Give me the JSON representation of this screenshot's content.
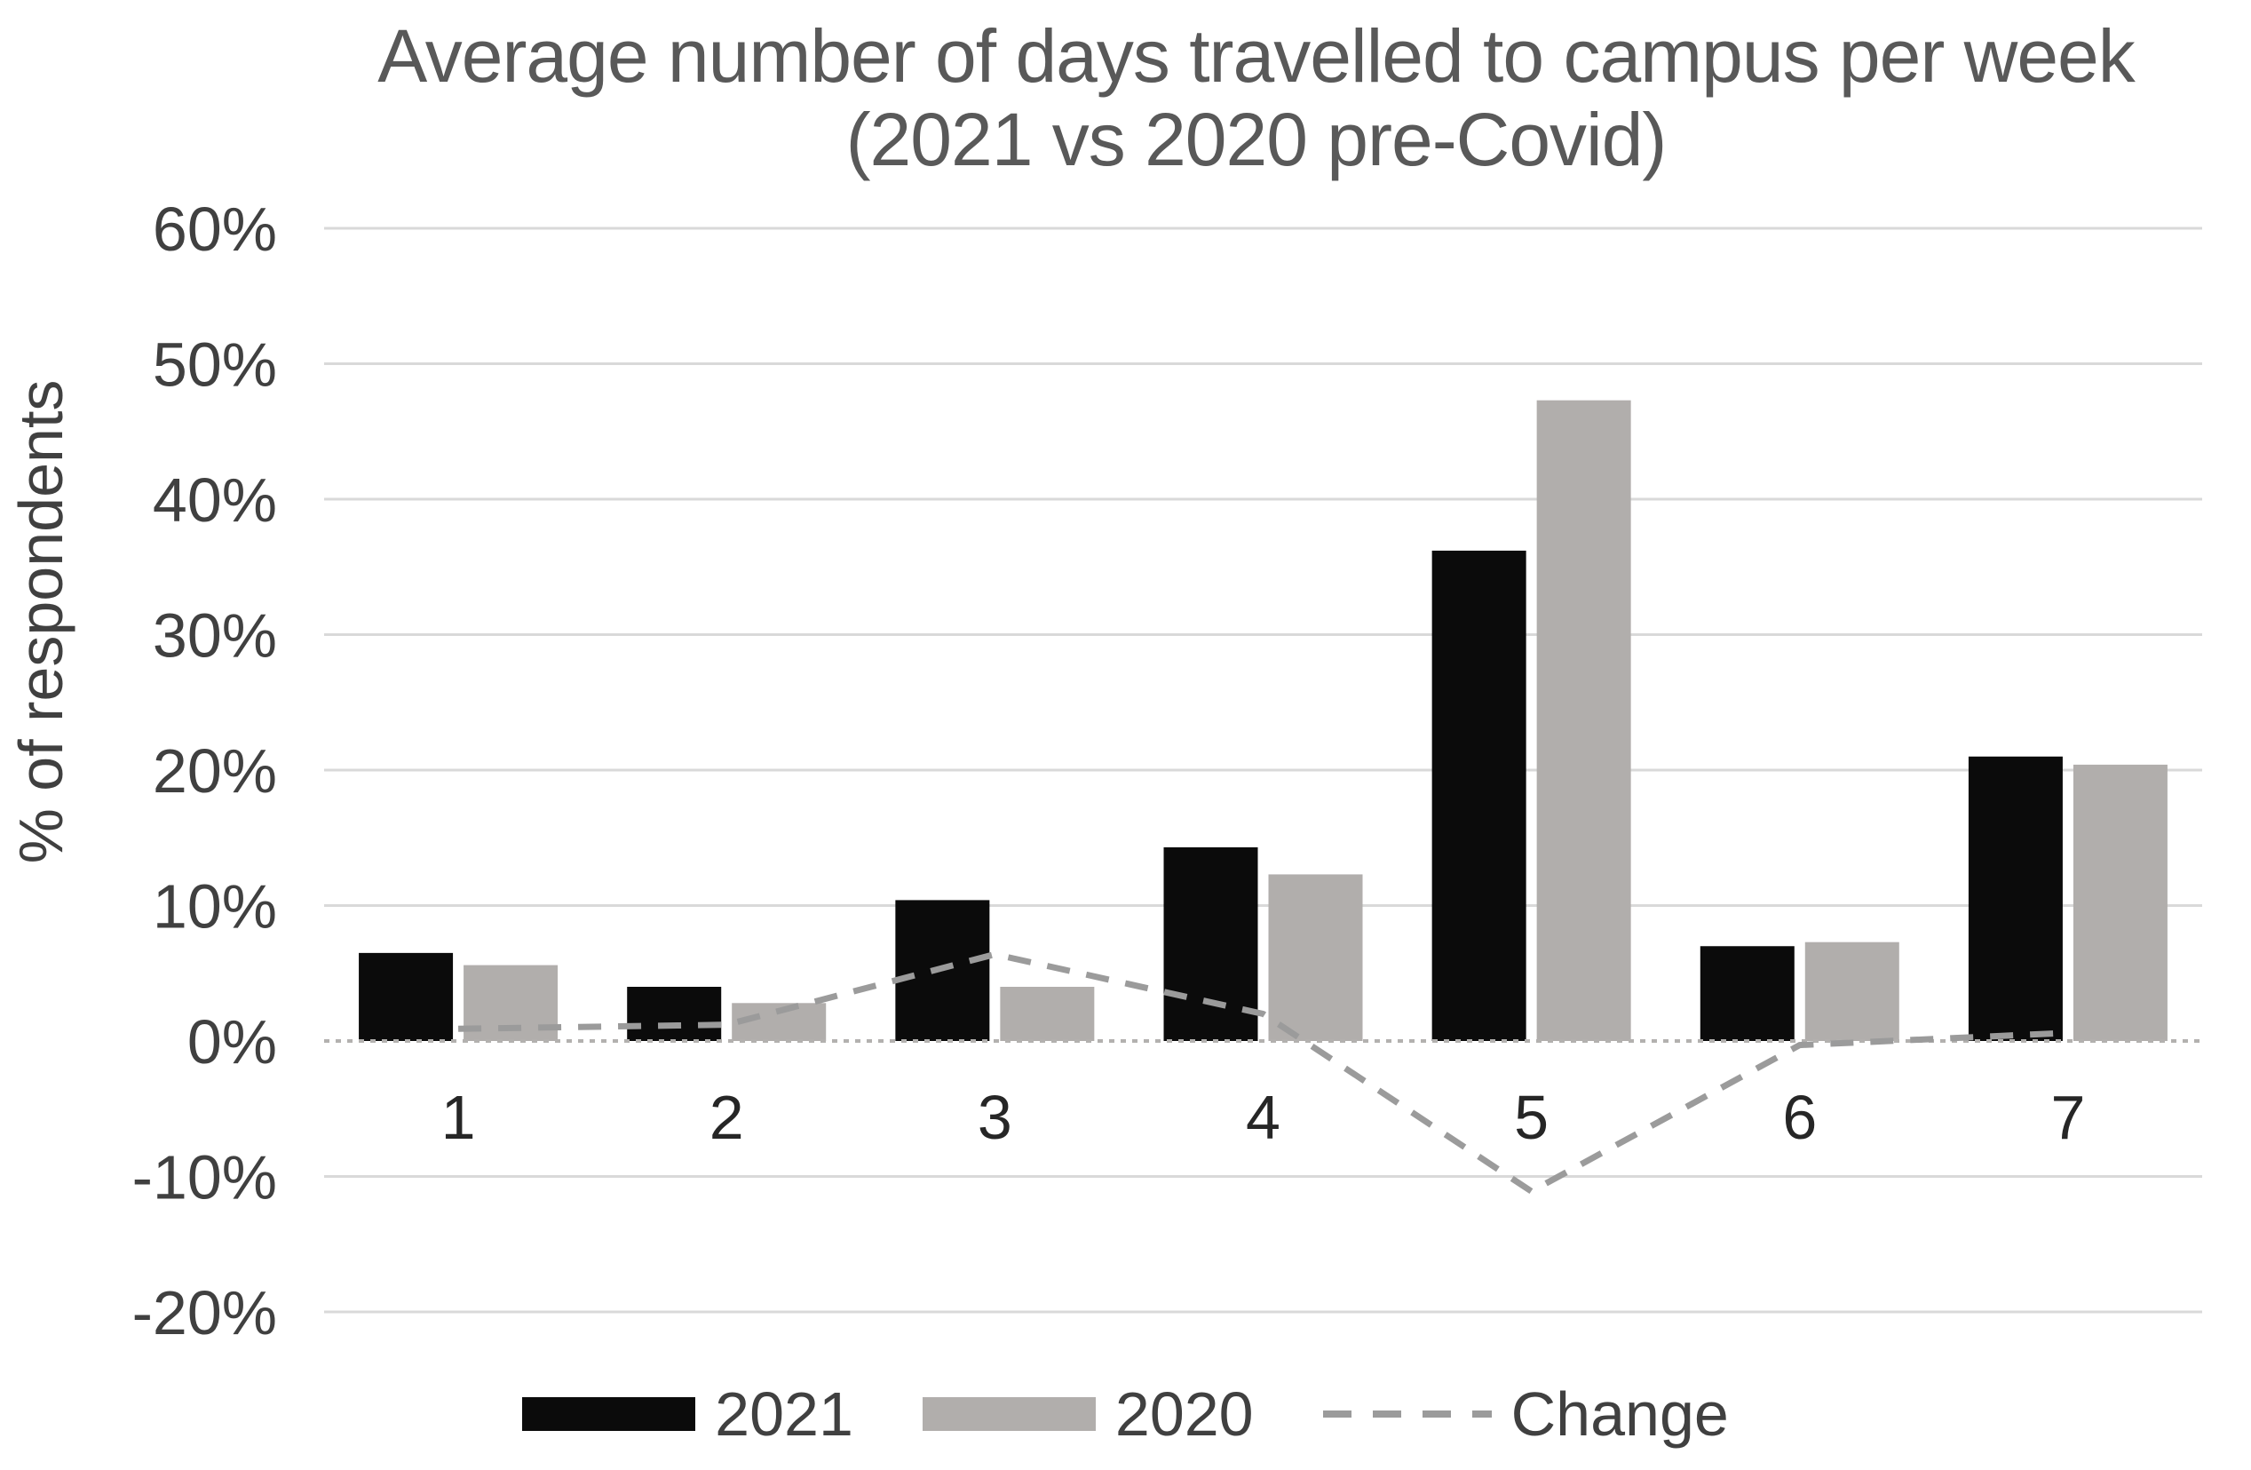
{
  "chart_data": {
    "type": "bar",
    "title": "Average number of days travelled to campus per week (2021 vs 2020 pre-Covid)",
    "title_lines": [
      "Average number of days travelled to campus per week",
      "(2021 vs 2020 pre-Covid)"
    ],
    "ylabel": "% of respondents",
    "xlabel": "",
    "categories": [
      "1",
      "2",
      "3",
      "4",
      "5",
      "6",
      "7"
    ],
    "series": [
      {
        "name": "2021",
        "type": "bar",
        "color": "#0b0b0b",
        "values": [
          6.5,
          4.0,
          10.4,
          14.3,
          36.2,
          7.0,
          21.0
        ]
      },
      {
        "name": "2020",
        "type": "bar",
        "color": "#b1aeac",
        "values": [
          5.6,
          2.8,
          4.0,
          12.3,
          47.3,
          7.3,
          20.4
        ]
      },
      {
        "name": "Change",
        "type": "line",
        "dashed": true,
        "color": "#9b9b9b",
        "values": [
          0.9,
          1.2,
          6.4,
          2.0,
          -11.1,
          -0.3,
          0.6
        ]
      }
    ],
    "y_ticks": [
      {
        "label": "60%",
        "value": 60
      },
      {
        "label": "50%",
        "value": 50
      },
      {
        "label": "40%",
        "value": 40
      },
      {
        "label": "30%",
        "value": 30
      },
      {
        "label": "20%",
        "value": 20
      },
      {
        "label": "10%",
        "value": 10
      },
      {
        "label": "0%",
        "value": 0
      },
      {
        "label": "-10%",
        "value": -10
      },
      {
        "label": "-20%",
        "value": -20
      }
    ],
    "ylim": [
      -20,
      60
    ],
    "grid": "horizontal",
    "gridline_color": "#d9d9d9",
    "zero_line_color": "#b3b1af",
    "tick_label_color": "#404040",
    "x_label_color": "#262626",
    "title_color": "#595959",
    "background": "#ffffff",
    "legend_position": "bottom"
  }
}
